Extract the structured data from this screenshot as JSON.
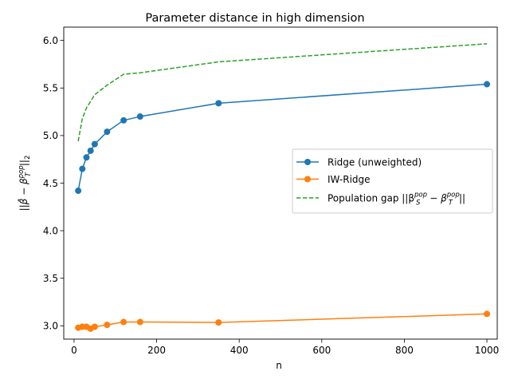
{
  "chart_data": {
    "type": "line",
    "title": "Parameter distance in high dimension",
    "xlabel": "n",
    "ylabel_parts": {
      "lead": "||",
      "beta_hat": "β̂",
      "minus": " − β",
      "sup": "pop",
      "sub": "T",
      "tail": "||",
      "tail_sub": "2"
    },
    "xlim": [
      -25,
      1025
    ],
    "ylim": [
      2.86,
      6.14
    ],
    "xticks": [
      0,
      200,
      400,
      600,
      800,
      1000
    ],
    "yticks": [
      3.0,
      3.5,
      4.0,
      4.5,
      5.0,
      5.5,
      6.0
    ],
    "xtick_labels": [
      "0",
      "200",
      "400",
      "600",
      "800",
      "1000"
    ],
    "ytick_labels": [
      "3.0",
      "3.5",
      "4.0",
      "4.5",
      "5.0",
      "5.5",
      "6.0"
    ],
    "grid": false,
    "legend_position": "center-right",
    "series": [
      {
        "name": "Ridge (unweighted)",
        "color": "#1f77b4",
        "style": "solid",
        "marker": "circle",
        "x": [
          10,
          20,
          30,
          40,
          50,
          80,
          120,
          160,
          350,
          1000
        ],
        "y": [
          4.42,
          4.65,
          4.77,
          4.84,
          4.91,
          5.04,
          5.16,
          5.2,
          5.34,
          5.54
        ]
      },
      {
        "name": "IW-Ridge",
        "color": "#ff7f0e",
        "style": "solid",
        "marker": "circle",
        "x": [
          10,
          20,
          30,
          40,
          50,
          80,
          120,
          160,
          350,
          1000
        ],
        "y": [
          2.98,
          2.99,
          2.99,
          2.97,
          2.99,
          3.01,
          3.04,
          3.04,
          3.035,
          3.125
        ]
      },
      {
        "name_parts": {
          "lead": "Population gap ||β",
          "sup1": "pop",
          "sub1": "S",
          "minus": " − β",
          "sup2": "pop",
          "sub2": "T",
          "tail": "||"
        },
        "color": "#2ca02c",
        "style": "dashed",
        "marker": "none",
        "x": [
          10,
          20,
          30,
          40,
          50,
          80,
          120,
          160,
          350,
          1000
        ],
        "y": [
          4.94,
          5.18,
          5.29,
          5.36,
          5.43,
          5.53,
          5.645,
          5.66,
          5.775,
          5.965
        ]
      }
    ]
  }
}
